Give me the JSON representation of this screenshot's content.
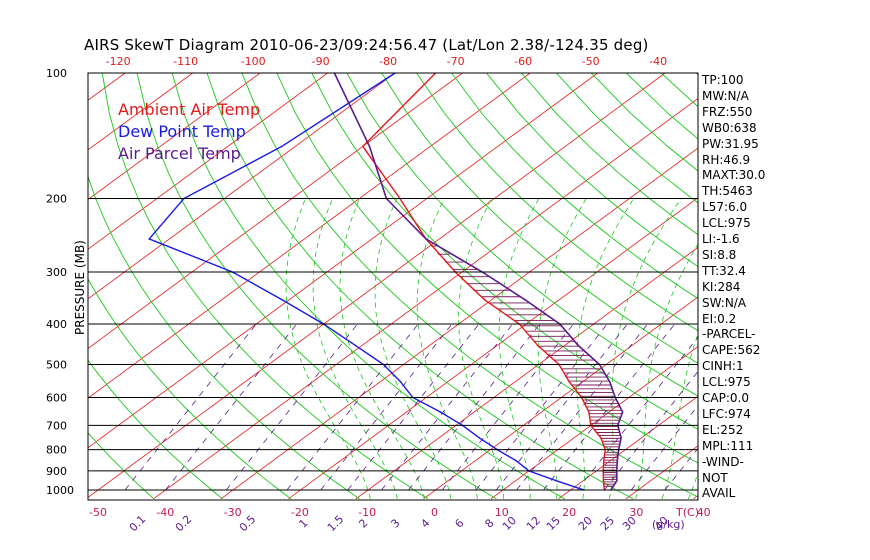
{
  "chart_data": {
    "type": "line",
    "title": "AIRS SkewT Diagram 2010-06-23/09:24:56.47 (Lat/Lon 2.38/-124.35 deg)",
    "ylabel": "PRESSURE (MB)",
    "xlabel": "T(C)",
    "mixing_ratio_label": "(g/kg)",
    "pressure_ticks": [
      "100",
      "200",
      "300",
      "400",
      "500",
      "600",
      "700",
      "800",
      "900",
      "1000"
    ],
    "top_temp_ticks": [
      "-120",
      "-110",
      "-100",
      "-90",
      "-80",
      "-70",
      "-60",
      "-50",
      "-40"
    ],
    "bottom_temp_ticks": [
      "-50",
      "-40",
      "-30",
      "-20",
      "-10",
      "0",
      "10",
      "20",
      "30",
      "40"
    ],
    "mixing_ratio_ticks": [
      "0.1",
      "0.2",
      "0.5",
      "1",
      "1.5",
      "2",
      "3",
      "4",
      "6",
      "8",
      "10",
      "12",
      "15",
      "20",
      "25",
      "30",
      "40"
    ],
    "legend": [
      {
        "name": "Ambient Air Temp",
        "color": "#e41a1a"
      },
      {
        "name": "Dew Point Temp",
        "color": "#1a1ae6"
      },
      {
        "name": "Air Parcel Temp",
        "color": "#5a1a8c"
      }
    ],
    "series": [
      {
        "name": "Ambient Air Temp",
        "color": "#e41a1a",
        "points": [
          [
            100,
            -84
          ],
          [
            150,
            -80
          ],
          [
            200,
            -64
          ],
          [
            250,
            -52
          ],
          [
            300,
            -41
          ],
          [
            350,
            -31
          ],
          [
            400,
            -21
          ],
          [
            450,
            -14
          ],
          [
            500,
            -7
          ],
          [
            550,
            -2
          ],
          [
            600,
            3
          ],
          [
            650,
            7
          ],
          [
            700,
            10
          ],
          [
            750,
            14
          ],
          [
            800,
            17
          ],
          [
            850,
            19
          ],
          [
            900,
            21
          ],
          [
            950,
            23
          ],
          [
            1000,
            25
          ]
        ]
      },
      {
        "name": "Dew Point Temp",
        "color": "#1a1ae6",
        "points": [
          [
            100,
            -90
          ],
          [
            150,
            -92
          ],
          [
            200,
            -96
          ],
          [
            250,
            -93
          ],
          [
            300,
            -74
          ],
          [
            350,
            -61
          ],
          [
            400,
            -50
          ],
          [
            450,
            -41
          ],
          [
            500,
            -33
          ],
          [
            550,
            -27
          ],
          [
            600,
            -22
          ],
          [
            650,
            -15
          ],
          [
            700,
            -9
          ],
          [
            750,
            -4
          ],
          [
            800,
            1
          ],
          [
            850,
            6
          ],
          [
            900,
            10
          ],
          [
            950,
            16
          ],
          [
            1000,
            22
          ]
        ]
      },
      {
        "name": "Air Parcel Temp",
        "color": "#5a1a8c",
        "points": [
          [
            100,
            -99
          ],
          [
            150,
            -79
          ],
          [
            200,
            -66
          ],
          [
            250,
            -52
          ],
          [
            300,
            -37
          ],
          [
            350,
            -25
          ],
          [
            400,
            -15
          ],
          [
            450,
            -8
          ],
          [
            500,
            -1
          ],
          [
            550,
            4
          ],
          [
            600,
            8
          ],
          [
            650,
            12
          ],
          [
            700,
            14
          ],
          [
            750,
            17
          ],
          [
            800,
            19
          ],
          [
            850,
            21
          ],
          [
            900,
            23
          ],
          [
            950,
            25
          ],
          [
            1000,
            26
          ]
        ]
      }
    ],
    "indices": [
      "TP:100",
      "MW:N/A",
      "FRZ:550",
      "WB0:638",
      "PW:31.95",
      "RH:46.9",
      "MAXT:30.0",
      "TH:5463",
      "L57:6.0",
      "LCL:975",
      "LI:-1.6",
      "SI:8.8",
      "TT:32.4",
      "KI:284",
      "SW:N/A",
      "EI:0.2",
      "-PARCEL-",
      "CAPE:562",
      "CINH:1",
      "LCL:975",
      "CAP:0.0",
      "LFC:974",
      "EL:252",
      "MPL:111",
      "-WIND-",
      "NOT",
      "AVAIL"
    ],
    "colors": {
      "isotherm": "#e41a1a",
      "dry_adiabat": "#1ac81a",
      "moist_adiabat": "#1ac81a",
      "mixing_ratio": "#5a1a8c"
    }
  }
}
